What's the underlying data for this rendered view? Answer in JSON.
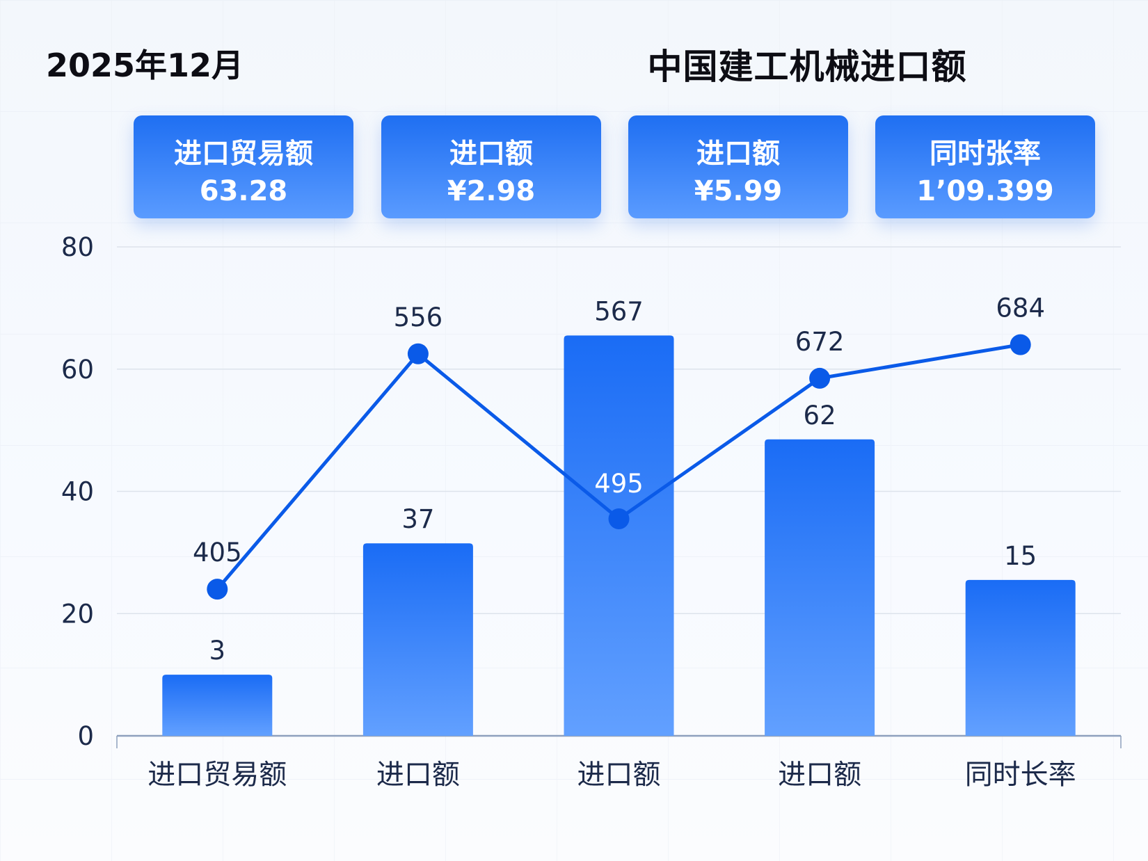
{
  "header": {
    "date": "2025年12月",
    "title": "中国建工机械进口额"
  },
  "cards": [
    {
      "label": "进口贸易额",
      "value": "63.28"
    },
    {
      "label": "进口额",
      "value": "¥2.98"
    },
    {
      "label": "进口额",
      "value": "¥5.99"
    },
    {
      "label": "同时张率",
      "value": "1’09.399"
    }
  ],
  "chart_data": {
    "type": "bar+line",
    "categories": [
      "进口贸易额",
      "进口额",
      "进口额",
      "进口额",
      "同时长率"
    ],
    "ylim": [
      0,
      80
    ],
    "yticks": [
      "0",
      "20",
      "40",
      "60",
      "80"
    ],
    "grid": true,
    "series": [
      {
        "type": "bar",
        "values": [
          10,
          31.5,
          65.5,
          48.5,
          25.5
        ],
        "labels": [
          "3",
          "37",
          "567",
          "62",
          "15"
        ],
        "color": "#1f6ff2"
      },
      {
        "type": "line",
        "values": [
          24,
          62.5,
          35.5,
          58.5,
          64
        ],
        "labels": [
          "405",
          "556",
          "495",
          "672",
          "684"
        ],
        "color": "#0a5ae8"
      }
    ]
  }
}
